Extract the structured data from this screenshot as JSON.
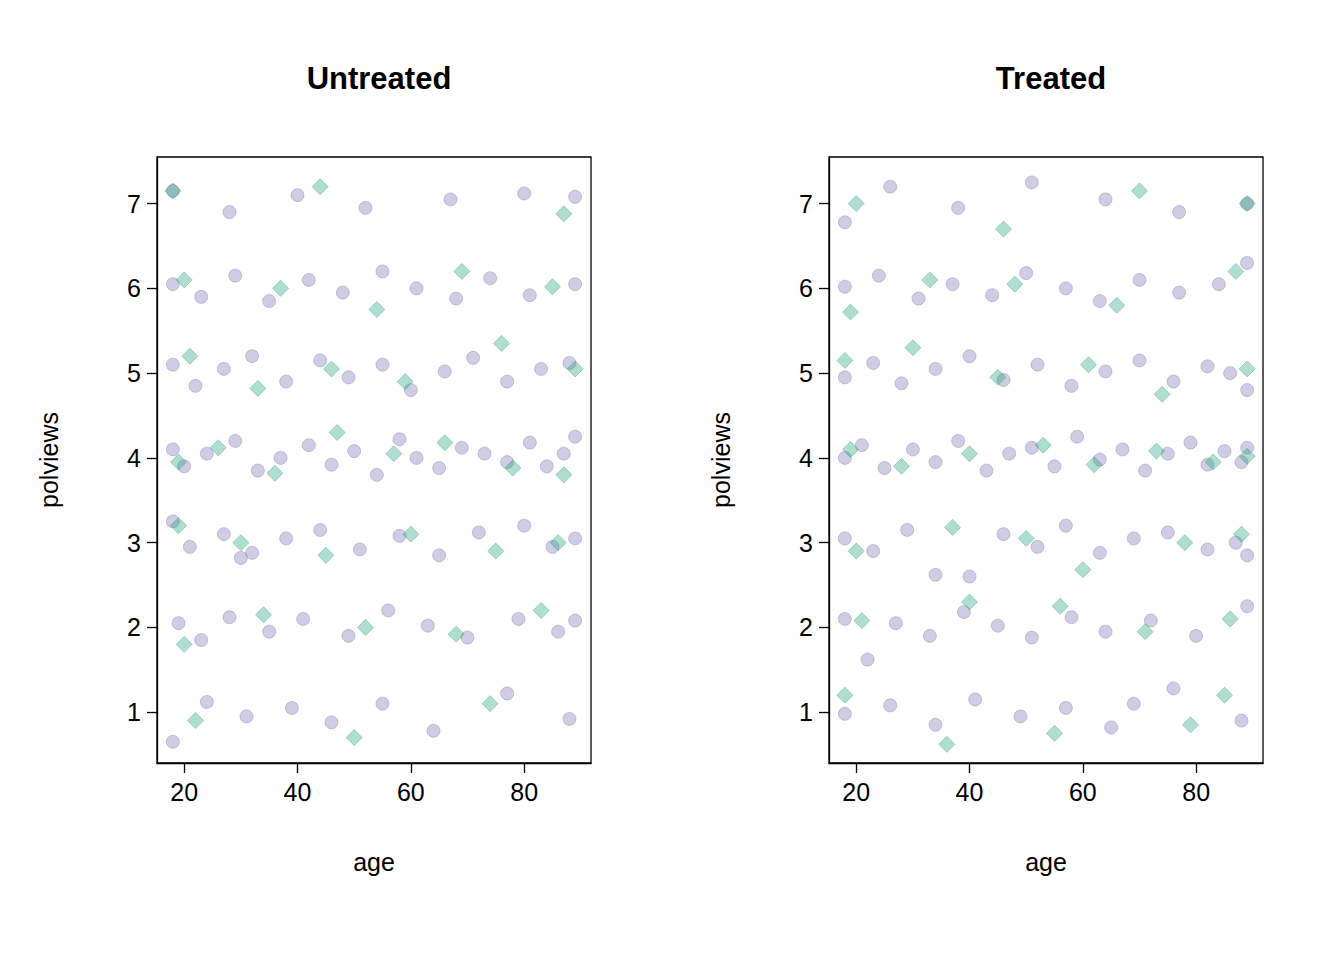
{
  "chart_data": [
    {
      "type": "scatter",
      "title": "Untreated",
      "x_label": "age",
      "y_label": "polviews",
      "xlim": [
        15.2,
        91.8
      ],
      "xticks": [
        20,
        40,
        60,
        80
      ],
      "ylim": [
        0.4,
        7.55
      ],
      "yticks": [
        1,
        2,
        3,
        4,
        5,
        6,
        7
      ],
      "grid": false,
      "series": [
        {
          "color": "#7570B3",
          "marker": "circle",
          "values": [
            [
              18,
              0.65
            ],
            [
              24,
              1.12
            ],
            [
              31,
              0.95
            ],
            [
              39,
              1.05
            ],
            [
              46,
              0.88
            ],
            [
              55,
              1.1
            ],
            [
              64,
              0.78
            ],
            [
              77,
              1.22
            ],
            [
              88,
              0.92
            ],
            [
              19,
              2.05
            ],
            [
              23,
              1.85
            ],
            [
              28,
              2.12
            ],
            [
              35,
              1.95
            ],
            [
              41,
              2.1
            ],
            [
              49,
              1.9
            ],
            [
              56,
              2.2
            ],
            [
              63,
              2.02
            ],
            [
              70,
              1.88
            ],
            [
              79,
              2.1
            ],
            [
              86,
              1.95
            ],
            [
              89,
              2.08
            ],
            [
              18,
              3.25
            ],
            [
              21,
              2.95
            ],
            [
              27,
              3.1
            ],
            [
              32,
              2.88
            ],
            [
              38,
              3.05
            ],
            [
              44,
              3.15
            ],
            [
              51,
              2.92
            ],
            [
              58,
              3.08
            ],
            [
              65,
              2.85
            ],
            [
              72,
              3.12
            ],
            [
              80,
              3.2
            ],
            [
              85,
              2.95
            ],
            [
              89,
              3.05
            ],
            [
              30,
              2.82
            ],
            [
              18,
              4.1
            ],
            [
              20,
              3.9
            ],
            [
              24,
              4.05
            ],
            [
              29,
              4.2
            ],
            [
              33,
              3.85
            ],
            [
              37,
              4.0
            ],
            [
              42,
              4.15
            ],
            [
              46,
              3.92
            ],
            [
              50,
              4.08
            ],
            [
              54,
              3.8
            ],
            [
              58,
              4.22
            ],
            [
              61,
              4.0
            ],
            [
              65,
              3.88
            ],
            [
              69,
              4.12
            ],
            [
              73,
              4.05
            ],
            [
              77,
              3.95
            ],
            [
              81,
              4.18
            ],
            [
              84,
              3.9
            ],
            [
              87,
              4.05
            ],
            [
              89,
              4.25
            ],
            [
              18,
              5.1
            ],
            [
              22,
              4.85
            ],
            [
              27,
              5.05
            ],
            [
              32,
              5.2
            ],
            [
              38,
              4.9
            ],
            [
              44,
              5.15
            ],
            [
              49,
              4.95
            ],
            [
              55,
              5.1
            ],
            [
              60,
              4.8
            ],
            [
              66,
              5.02
            ],
            [
              71,
              5.18
            ],
            [
              77,
              4.9
            ],
            [
              83,
              5.05
            ],
            [
              88,
              5.12
            ],
            [
              18,
              6.05
            ],
            [
              23,
              5.9
            ],
            [
              29,
              6.15
            ],
            [
              35,
              5.85
            ],
            [
              42,
              6.1
            ],
            [
              48,
              5.95
            ],
            [
              55,
              6.2
            ],
            [
              61,
              6.0
            ],
            [
              68,
              5.88
            ],
            [
              74,
              6.12
            ],
            [
              81,
              5.92
            ],
            [
              89,
              6.05
            ],
            [
              18,
              7.15
            ],
            [
              28,
              6.9
            ],
            [
              40,
              7.1
            ],
            [
              52,
              6.95
            ],
            [
              67,
              7.05
            ],
            [
              80,
              7.12
            ],
            [
              89,
              7.08
            ]
          ]
        },
        {
          "color": "#1B9E77",
          "marker": "diamond",
          "values": [
            [
              22,
              0.9
            ],
            [
              50,
              0.7
            ],
            [
              74,
              1.1
            ],
            [
              20,
              1.8
            ],
            [
              34,
              2.15
            ],
            [
              52,
              2.0
            ],
            [
              68,
              1.92
            ],
            [
              83,
              2.2
            ],
            [
              19,
              3.2
            ],
            [
              30,
              3.0
            ],
            [
              45,
              2.85
            ],
            [
              60,
              3.1
            ],
            [
              75,
              2.9
            ],
            [
              86,
              3.0
            ],
            [
              19,
              3.95
            ],
            [
              26,
              4.12
            ],
            [
              36,
              3.82
            ],
            [
              47,
              4.3
            ],
            [
              57,
              4.05
            ],
            [
              66,
              4.18
            ],
            [
              78,
              3.88
            ],
            [
              87,
              3.8
            ],
            [
              21,
              5.2
            ],
            [
              33,
              4.82
            ],
            [
              46,
              5.05
            ],
            [
              59,
              4.9
            ],
            [
              76,
              5.35
            ],
            [
              89,
              5.05
            ],
            [
              20,
              6.1
            ],
            [
              37,
              6.0
            ],
            [
              54,
              5.75
            ],
            [
              69,
              6.2
            ],
            [
              85,
              6.02
            ],
            [
              18,
              7.15
            ],
            [
              44,
              7.2
            ],
            [
              87,
              6.88
            ]
          ]
        }
      ]
    },
    {
      "type": "scatter",
      "title": "Treated",
      "x_label": "age",
      "y_label": "polviews",
      "xlim": [
        15.2,
        91.8
      ],
      "xticks": [
        20,
        40,
        60,
        80
      ],
      "ylim": [
        0.4,
        7.55
      ],
      "yticks": [
        1,
        2,
        3,
        4,
        5,
        6,
        7
      ],
      "grid": false,
      "series": [
        {
          "color": "#7570B3",
          "marker": "circle",
          "values": [
            [
              18,
              0.98
            ],
            [
              26,
              1.08
            ],
            [
              34,
              0.85
            ],
            [
              41,
              1.15
            ],
            [
              49,
              0.95
            ],
            [
              57,
              1.05
            ],
            [
              65,
              0.82
            ],
            [
              69,
              1.1
            ],
            [
              76,
              1.28
            ],
            [
              88,
              0.9
            ],
            [
              18,
              2.1
            ],
            [
              22,
              1.62
            ],
            [
              27,
              2.05
            ],
            [
              33,
              1.9
            ],
            [
              39,
              2.18
            ],
            [
              45,
              2.02
            ],
            [
              51,
              1.88
            ],
            [
              58,
              2.12
            ],
            [
              64,
              1.95
            ],
            [
              72,
              2.08
            ],
            [
              80,
              1.9
            ],
            [
              89,
              2.25
            ],
            [
              18,
              3.05
            ],
            [
              23,
              2.9
            ],
            [
              29,
              3.15
            ],
            [
              34,
              2.62
            ],
            [
              40,
              2.6
            ],
            [
              46,
              3.1
            ],
            [
              52,
              2.95
            ],
            [
              57,
              3.2
            ],
            [
              63,
              2.88
            ],
            [
              69,
              3.05
            ],
            [
              75,
              3.12
            ],
            [
              82,
              2.92
            ],
            [
              87,
              3.0
            ],
            [
              89,
              2.85
            ],
            [
              18,
              4.0
            ],
            [
              21,
              4.15
            ],
            [
              25,
              3.88
            ],
            [
              30,
              4.1
            ],
            [
              34,
              3.95
            ],
            [
              38,
              4.2
            ],
            [
              43,
              3.85
            ],
            [
              47,
              4.05
            ],
            [
              51,
              4.12
            ],
            [
              55,
              3.9
            ],
            [
              59,
              4.25
            ],
            [
              63,
              3.98
            ],
            [
              67,
              4.1
            ],
            [
              71,
              3.85
            ],
            [
              75,
              4.05
            ],
            [
              79,
              4.18
            ],
            [
              82,
              3.92
            ],
            [
              85,
              4.08
            ],
            [
              88,
              3.95
            ],
            [
              89,
              4.12
            ],
            [
              18,
              4.95
            ],
            [
              23,
              5.12
            ],
            [
              28,
              4.88
            ],
            [
              34,
              5.05
            ],
            [
              40,
              5.2
            ],
            [
              46,
              4.92
            ],
            [
              52,
              5.1
            ],
            [
              58,
              4.85
            ],
            [
              64,
              5.02
            ],
            [
              70,
              5.15
            ],
            [
              76,
              4.9
            ],
            [
              82,
              5.08
            ],
            [
              86,
              5.0
            ],
            [
              89,
              4.8
            ],
            [
              18,
              6.02
            ],
            [
              24,
              6.15
            ],
            [
              31,
              5.88
            ],
            [
              37,
              6.05
            ],
            [
              44,
              5.92
            ],
            [
              50,
              6.18
            ],
            [
              57,
              6.0
            ],
            [
              63,
              5.85
            ],
            [
              70,
              6.1
            ],
            [
              77,
              5.95
            ],
            [
              84,
              6.05
            ],
            [
              89,
              6.3
            ],
            [
              18,
              6.78
            ],
            [
              26,
              7.2
            ],
            [
              38,
              6.95
            ],
            [
              51,
              7.25
            ],
            [
              64,
              7.05
            ],
            [
              77,
              6.9
            ],
            [
              89,
              7.0
            ]
          ]
        },
        {
          "color": "#1B9E77",
          "marker": "diamond",
          "values": [
            [
              18,
              1.2
            ],
            [
              36,
              0.62
            ],
            [
              55,
              0.75
            ],
            [
              79,
              0.85
            ],
            [
              85,
              1.2
            ],
            [
              21,
              2.08
            ],
            [
              40,
              2.3
            ],
            [
              56,
              2.25
            ],
            [
              71,
              1.95
            ],
            [
              86,
              2.1
            ],
            [
              20,
              2.9
            ],
            [
              37,
              3.18
            ],
            [
              50,
              3.05
            ],
            [
              60,
              2.68
            ],
            [
              78,
              3.0
            ],
            [
              88,
              3.1
            ],
            [
              19,
              4.1
            ],
            [
              28,
              3.9
            ],
            [
              40,
              4.05
            ],
            [
              53,
              4.15
            ],
            [
              62,
              3.92
            ],
            [
              73,
              4.08
            ],
            [
              83,
              3.95
            ],
            [
              89,
              4.02
            ],
            [
              18,
              5.15
            ],
            [
              30,
              5.3
            ],
            [
              45,
              4.95
            ],
            [
              61,
              5.1
            ],
            [
              74,
              4.75
            ],
            [
              89,
              5.05
            ],
            [
              19,
              5.72
            ],
            [
              33,
              6.1
            ],
            [
              48,
              6.05
            ],
            [
              66,
              5.8
            ],
            [
              87,
              6.2
            ],
            [
              20,
              7.0
            ],
            [
              46,
              6.7
            ],
            [
              70,
              7.15
            ],
            [
              89,
              7.0
            ]
          ]
        }
      ]
    }
  ]
}
